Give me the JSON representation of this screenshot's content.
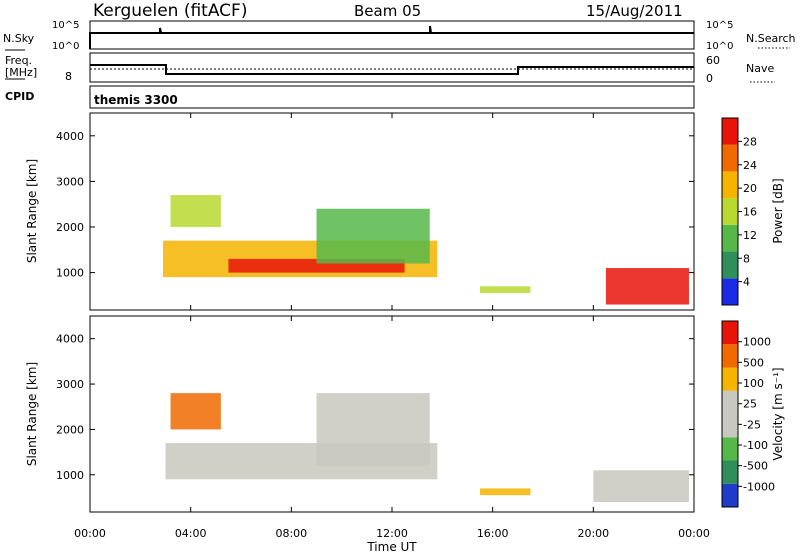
{
  "header": {
    "station": "Kerguelen (fitACF)",
    "beam": "Beam 05",
    "date": "15/Aug/2011"
  },
  "strip_labels": {
    "nsky": "N.Sky",
    "nsky_ticks": [
      "10^5",
      "10^0"
    ],
    "nsearch": "N.Search",
    "nsearch_ticks": [
      "10^5",
      "10^0"
    ],
    "freq": "Freq.",
    "freq_unit": "[MHz]",
    "freq_ticks": [
      "8"
    ],
    "nave": "Nave",
    "nave_ticks": [
      "60",
      "0"
    ],
    "cpid": "CPID",
    "cpid_value": "themis 3300"
  },
  "chart_data": [
    {
      "type": "heatmap",
      "name": "Power",
      "ylabel": "Slant Range [km]",
      "yticks": [
        "1000",
        "2000",
        "3000",
        "4000"
      ],
      "colorbar_label": "Power [dB]",
      "colorbar_ticks": [
        "4",
        "8",
        "12",
        "16",
        "20",
        "24",
        "28"
      ],
      "colors": [
        "#1a2be6",
        "#2f8f5a",
        "#57b84a",
        "#b9d830",
        "#f5b400",
        "#f06a00",
        "#e8140a"
      ],
      "regions": [
        {
          "x": [
            2.9,
            13.8
          ],
          "y": [
            900,
            1700
          ],
          "level": 4
        },
        {
          "x": [
            5.5,
            12.5
          ],
          "y": [
            1000,
            1300
          ],
          "level": 6
        },
        {
          "x": [
            3.2,
            5.2
          ],
          "y": [
            2000,
            2700
          ],
          "level": 3
        },
        {
          "x": [
            9.0,
            13.5
          ],
          "y": [
            1200,
            2400
          ],
          "level": 2
        },
        {
          "x": [
            20.5,
            23.8
          ],
          "y": [
            300,
            1100
          ],
          "level": 6
        },
        {
          "x": [
            15.5,
            17.5
          ],
          "y": [
            550,
            700
          ],
          "level": 3
        }
      ]
    },
    {
      "type": "heatmap",
      "name": "Velocity",
      "ylabel": "Slant Range [km]",
      "yticks": [
        "1000",
        "2000",
        "3000",
        "4000"
      ],
      "colorbar_label": "Velocity [m s⁻¹]",
      "colorbar_ticks": [
        "1000",
        "500",
        "100",
        "25",
        "-25",
        "-100",
        "-500",
        "-1000"
      ],
      "colors": [
        "#1f3cc8",
        "#2f8f5a",
        "#57b84a",
        "#c8c8c0",
        "#c8c8c0",
        "#f5b400",
        "#f06a00",
        "#e8140a"
      ],
      "regions": [
        {
          "x": [
            3.0,
            13.8
          ],
          "y": [
            900,
            1700
          ],
          "level": 3
        },
        {
          "x": [
            3.2,
            5.2
          ],
          "y": [
            2000,
            2800
          ],
          "level": 6
        },
        {
          "x": [
            9.0,
            13.5
          ],
          "y": [
            1200,
            2800
          ],
          "level": 3
        },
        {
          "x": [
            15.5,
            17.5
          ],
          "y": [
            550,
            700
          ],
          "level": 5
        },
        {
          "x": [
            20.0,
            23.8
          ],
          "y": [
            400,
            1100
          ],
          "level": 3
        }
      ]
    }
  ],
  "xaxis": {
    "label": "Time UT",
    "ticks": [
      "00:00",
      "04:00",
      "08:00",
      "12:00",
      "16:00",
      "20:00",
      "00:00"
    ]
  }
}
